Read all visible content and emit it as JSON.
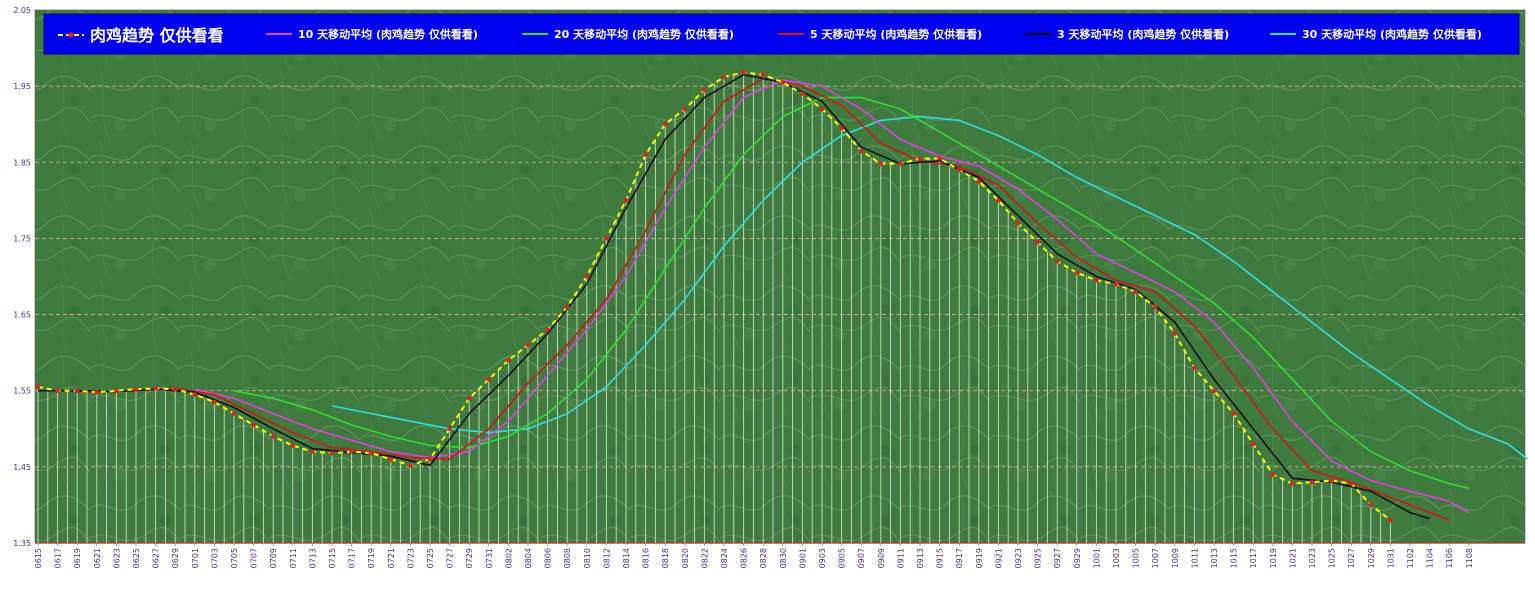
{
  "chart_data": {
    "type": "line",
    "ylim": [
      1.35,
      2.05
    ],
    "yticks": [
      "1.35",
      "1.45",
      "1.55",
      "1.65",
      "1.75",
      "1.85",
      "1.95",
      "2.05"
    ],
    "x_labels": [
      "0615",
      "0617",
      "0619",
      "0621",
      "0623",
      "0625",
      "0627",
      "0629",
      "0701",
      "0703",
      "0705",
      "0707",
      "0709",
      "0711",
      "0713",
      "0715",
      "0717",
      "0719",
      "0721",
      "0723",
      "0725",
      "0727",
      "0729",
      "0731",
      "0802",
      "0804",
      "0806",
      "0808",
      "0810",
      "0812",
      "0814",
      "0816",
      "0818",
      "0820",
      "0822",
      "0824",
      "0826",
      "0828",
      "0830",
      "0901",
      "0903",
      "0905",
      "0907",
      "0909",
      "0911",
      "0913",
      "0915",
      "0917",
      "0919",
      "0921",
      "0923",
      "0925",
      "0927",
      "0929",
      "1001",
      "1003",
      "1005",
      "1007",
      "1009",
      "1011",
      "1013",
      "1015",
      "1017",
      "1019",
      "1021",
      "1023",
      "1025",
      "1027",
      "1029",
      "1031",
      "1102",
      "1104",
      "1106",
      "1108"
    ],
    "grid": true,
    "legend_position": "top",
    "series": [
      {
        "name": "肉鸡趋势  仅供看看",
        "color": "#ffff00",
        "key": "trend",
        "points": [
          [
            0,
            1.555
          ],
          [
            1,
            1.55
          ],
          [
            2,
            1.55
          ],
          [
            3,
            1.548
          ],
          [
            4,
            1.55
          ],
          [
            5,
            1.552
          ],
          [
            6,
            1.553
          ],
          [
            7,
            1.552
          ],
          [
            8,
            1.545
          ],
          [
            9,
            1.535
          ],
          [
            10,
            1.52
          ],
          [
            11,
            1.505
          ],
          [
            12,
            1.49
          ],
          [
            13,
            1.478
          ],
          [
            14,
            1.47
          ],
          [
            15,
            1.468
          ],
          [
            16,
            1.47
          ],
          [
            17,
            1.468
          ],
          [
            18,
            1.46
          ],
          [
            19,
            1.452
          ],
          [
            20,
            1.46
          ],
          [
            21,
            1.5
          ],
          [
            22,
            1.54
          ],
          [
            23,
            1.565
          ],
          [
            24,
            1.59
          ],
          [
            25,
            1.61
          ],
          [
            26,
            1.63
          ],
          [
            27,
            1.66
          ],
          [
            28,
            1.7
          ],
          [
            29,
            1.75
          ],
          [
            30,
            1.8
          ],
          [
            31,
            1.86
          ],
          [
            32,
            1.9
          ],
          [
            33,
            1.92
          ],
          [
            34,
            1.945
          ],
          [
            35,
            1.962
          ],
          [
            36,
            1.968
          ],
          [
            37,
            1.965
          ],
          [
            38,
            1.955
          ],
          [
            39,
            1.94
          ],
          [
            40,
            1.92
          ],
          [
            41,
            1.895
          ],
          [
            42,
            1.865
          ],
          [
            43,
            1.848
          ],
          [
            44,
            1.848
          ],
          [
            45,
            1.855
          ],
          [
            46,
            1.855
          ],
          [
            47,
            1.84
          ],
          [
            48,
            1.825
          ],
          [
            49,
            1.8
          ],
          [
            50,
            1.77
          ],
          [
            51,
            1.745
          ],
          [
            52,
            1.72
          ],
          [
            53,
            1.705
          ],
          [
            54,
            1.695
          ],
          [
            55,
            1.69
          ],
          [
            56,
            1.68
          ],
          [
            57,
            1.66
          ],
          [
            58,
            1.625
          ],
          [
            59,
            1.58
          ],
          [
            60,
            1.55
          ],
          [
            61,
            1.52
          ],
          [
            62,
            1.48
          ],
          [
            63,
            1.44
          ],
          [
            64,
            1.428
          ],
          [
            65,
            1.43
          ],
          [
            66,
            1.432
          ],
          [
            67,
            1.428
          ],
          [
            68,
            1.4
          ],
          [
            69,
            1.38
          ]
        ]
      },
      {
        "name": "10 天移动平均 (肉鸡趋势  仅供看看)",
        "color": "#e040e0",
        "key": "ma10",
        "points": [
          [
            8,
            1.552
          ],
          [
            10,
            1.54
          ],
          [
            12,
            1.52
          ],
          [
            14,
            1.5
          ],
          [
            16,
            1.485
          ],
          [
            18,
            1.47
          ],
          [
            20,
            1.462
          ],
          [
            22,
            1.47
          ],
          [
            24,
            1.51
          ],
          [
            26,
            1.57
          ],
          [
            28,
            1.63
          ],
          [
            30,
            1.7
          ],
          [
            32,
            1.79
          ],
          [
            34,
            1.87
          ],
          [
            36,
            1.935
          ],
          [
            38,
            1.958
          ],
          [
            40,
            1.95
          ],
          [
            42,
            1.92
          ],
          [
            44,
            1.88
          ],
          [
            46,
            1.858
          ],
          [
            48,
            1.845
          ],
          [
            50,
            1.815
          ],
          [
            52,
            1.775
          ],
          [
            54,
            1.73
          ],
          [
            56,
            1.705
          ],
          [
            58,
            1.68
          ],
          [
            60,
            1.64
          ],
          [
            62,
            1.58
          ],
          [
            64,
            1.51
          ],
          [
            66,
            1.458
          ],
          [
            68,
            1.432
          ],
          [
            70,
            1.418
          ],
          [
            72,
            1.405
          ],
          [
            73,
            1.39
          ]
        ]
      },
      {
        "name": "20 天移动平均 (肉鸡趋势  仅供看看)",
        "color": "#33dd33",
        "key": "ma20",
        "points": [
          [
            10,
            1.55
          ],
          [
            12,
            1.54
          ],
          [
            14,
            1.525
          ],
          [
            16,
            1.505
          ],
          [
            18,
            1.49
          ],
          [
            20,
            1.478
          ],
          [
            22,
            1.475
          ],
          [
            24,
            1.49
          ],
          [
            26,
            1.52
          ],
          [
            28,
            1.565
          ],
          [
            30,
            1.63
          ],
          [
            32,
            1.71
          ],
          [
            34,
            1.79
          ],
          [
            36,
            1.86
          ],
          [
            38,
            1.91
          ],
          [
            40,
            1.935
          ],
          [
            42,
            1.935
          ],
          [
            44,
            1.92
          ],
          [
            46,
            1.89
          ],
          [
            48,
            1.86
          ],
          [
            50,
            1.83
          ],
          [
            52,
            1.8
          ],
          [
            54,
            1.77
          ],
          [
            56,
            1.735
          ],
          [
            58,
            1.7
          ],
          [
            60,
            1.665
          ],
          [
            62,
            1.62
          ],
          [
            64,
            1.565
          ],
          [
            66,
            1.51
          ],
          [
            68,
            1.47
          ],
          [
            70,
            1.445
          ],
          [
            72,
            1.428
          ],
          [
            73,
            1.422
          ]
        ]
      },
      {
        "name": "5 天移动平均 (肉鸡趋势  仅供看看)",
        "color": "#cc1a1a",
        "key": "ma5",
        "points": [
          [
            1,
            1.55
          ],
          [
            3,
            1.548
          ],
          [
            5,
            1.55
          ],
          [
            7,
            1.553
          ],
          [
            9,
            1.545
          ],
          [
            11,
            1.52
          ],
          [
            13,
            1.495
          ],
          [
            15,
            1.475
          ],
          [
            17,
            1.47
          ],
          [
            19,
            1.462
          ],
          [
            21,
            1.46
          ],
          [
            23,
            1.5
          ],
          [
            25,
            1.56
          ],
          [
            27,
            1.61
          ],
          [
            29,
            1.67
          ],
          [
            31,
            1.76
          ],
          [
            33,
            1.86
          ],
          [
            35,
            1.93
          ],
          [
            37,
            1.96
          ],
          [
            39,
            1.95
          ],
          [
            41,
            1.925
          ],
          [
            43,
            1.875
          ],
          [
            45,
            1.852
          ],
          [
            47,
            1.845
          ],
          [
            49,
            1.82
          ],
          [
            51,
            1.77
          ],
          [
            53,
            1.725
          ],
          [
            55,
            1.695
          ],
          [
            57,
            1.68
          ],
          [
            59,
            1.635
          ],
          [
            61,
            1.57
          ],
          [
            63,
            1.5
          ],
          [
            65,
            1.445
          ],
          [
            67,
            1.43
          ],
          [
            69,
            1.41
          ],
          [
            71,
            1.39
          ],
          [
            72,
            1.38
          ]
        ]
      },
      {
        "name": "3 天移动平均 (肉鸡趋势  仅供看看)",
        "color": "#111111",
        "key": "ma3",
        "points": [
          [
            0,
            1.55
          ],
          [
            2,
            1.55
          ],
          [
            4,
            1.549
          ],
          [
            6,
            1.552
          ],
          [
            8,
            1.548
          ],
          [
            10,
            1.528
          ],
          [
            12,
            1.5
          ],
          [
            14,
            1.474
          ],
          [
            16,
            1.469
          ],
          [
            18,
            1.464
          ],
          [
            20,
            1.452
          ],
          [
            22,
            1.52
          ],
          [
            24,
            1.57
          ],
          [
            26,
            1.625
          ],
          [
            28,
            1.69
          ],
          [
            30,
            1.79
          ],
          [
            32,
            1.88
          ],
          [
            34,
            1.935
          ],
          [
            36,
            1.965
          ],
          [
            38,
            1.955
          ],
          [
            40,
            1.93
          ],
          [
            42,
            1.87
          ],
          [
            44,
            1.848
          ],
          [
            46,
            1.852
          ],
          [
            48,
            1.83
          ],
          [
            50,
            1.78
          ],
          [
            52,
            1.73
          ],
          [
            54,
            1.7
          ],
          [
            56,
            1.683
          ],
          [
            58,
            1.64
          ],
          [
            60,
            1.565
          ],
          [
            62,
            1.5
          ],
          [
            64,
            1.435
          ],
          [
            66,
            1.43
          ],
          [
            68,
            1.418
          ],
          [
            70,
            1.39
          ],
          [
            71,
            1.382
          ]
        ]
      },
      {
        "name": "30 天移动平均 (肉鸡趋势  仅供看看)",
        "color": "#33dddd",
        "key": "ma30",
        "points": [
          [
            15,
            1.53
          ],
          [
            17,
            1.52
          ],
          [
            19,
            1.51
          ],
          [
            21,
            1.5
          ],
          [
            23,
            1.495
          ],
          [
            25,
            1.5
          ],
          [
            27,
            1.52
          ],
          [
            29,
            1.555
          ],
          [
            31,
            1.61
          ],
          [
            33,
            1.67
          ],
          [
            35,
            1.74
          ],
          [
            37,
            1.8
          ],
          [
            39,
            1.85
          ],
          [
            41,
            1.885
          ],
          [
            43,
            1.905
          ],
          [
            45,
            1.91
          ],
          [
            47,
            1.905
          ],
          [
            49,
            1.885
          ],
          [
            51,
            1.86
          ],
          [
            53,
            1.83
          ],
          [
            55,
            1.805
          ],
          [
            57,
            1.78
          ],
          [
            59,
            1.755
          ],
          [
            61,
            1.72
          ],
          [
            63,
            1.68
          ],
          [
            65,
            1.64
          ],
          [
            67,
            1.6
          ],
          [
            69,
            1.565
          ],
          [
            71,
            1.53
          ],
          [
            73,
            1.5
          ],
          [
            75,
            1.48
          ],
          [
            76,
            1.46
          ]
        ]
      }
    ]
  }
}
